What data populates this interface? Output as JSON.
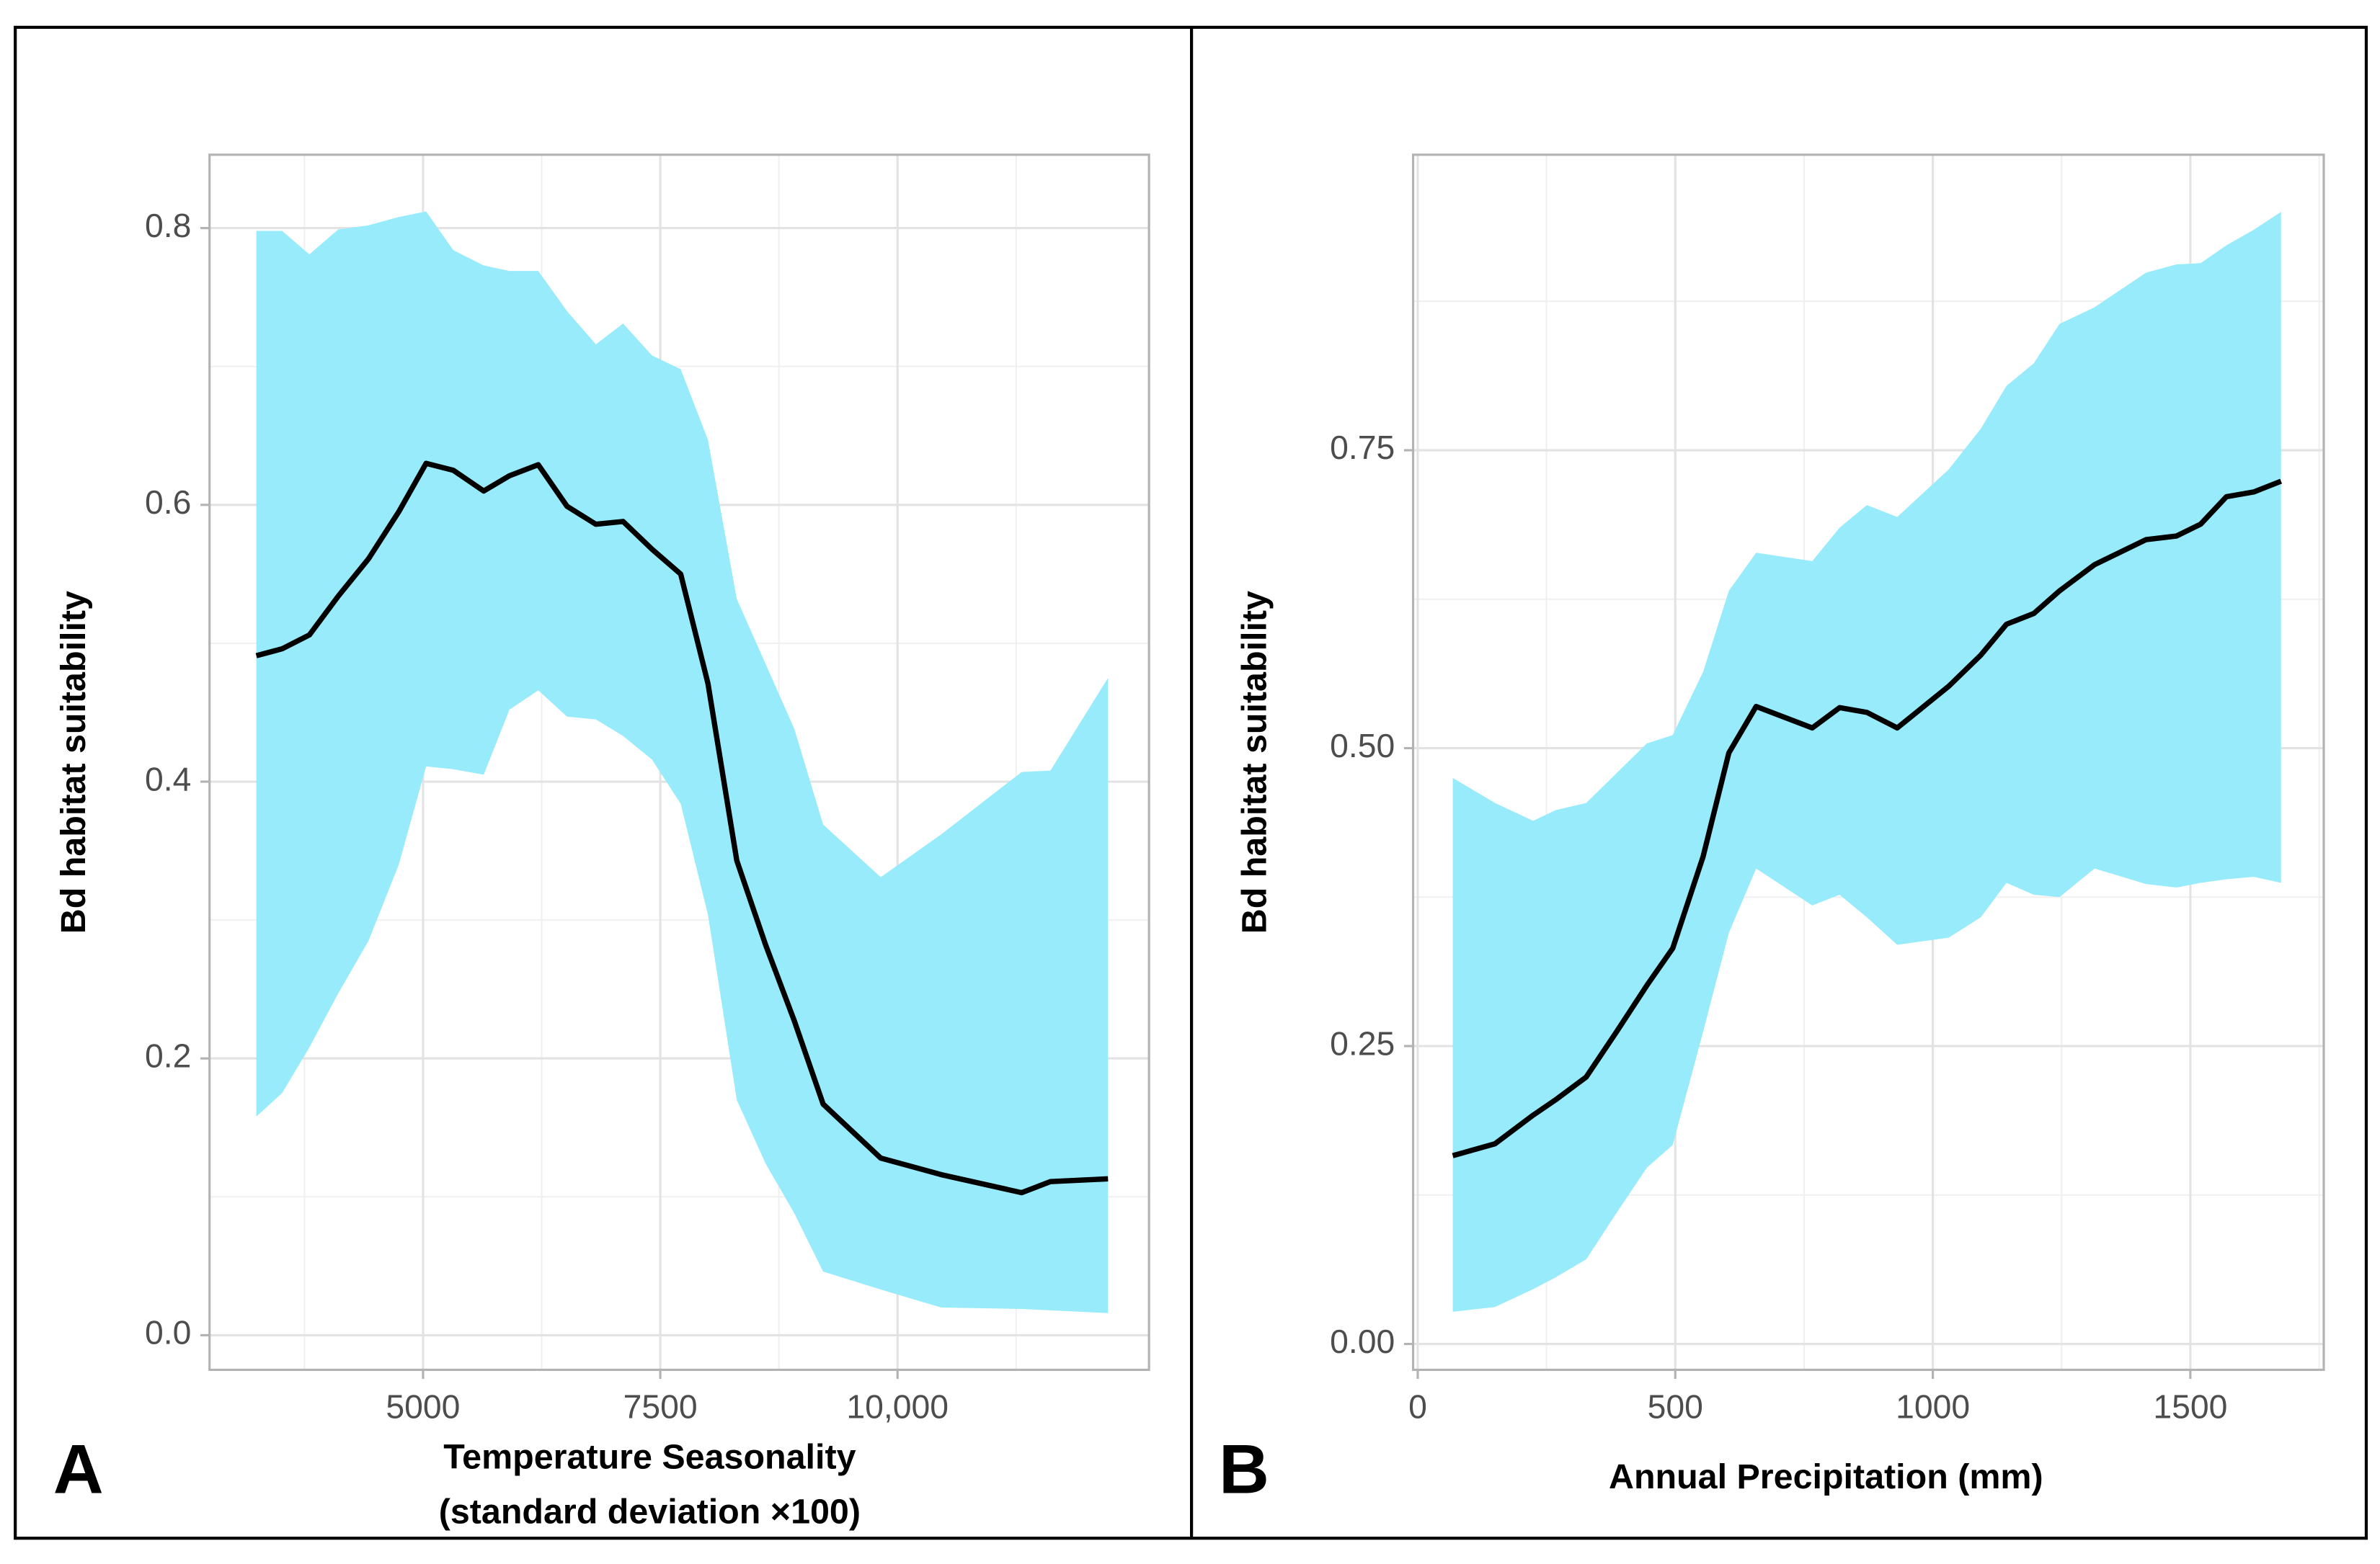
{
  "chart_data": [
    {
      "type": "line",
      "panel_label": "A",
      "xlabel": [
        "Temperature Seasonality",
        "(standard deviation ×100)"
      ],
      "ylabel": "Bd habitat suitability",
      "xlim": [
        2750,
        12650
      ],
      "ylim": [
        -0.025,
        0.853
      ],
      "xticks": [
        5000,
        7500,
        {
          "value": 10000,
          "label": "10,000"
        }
      ],
      "yticks": [
        {
          "value": 0,
          "label": "0.0"
        },
        0.2,
        0.4,
        0.6,
        0.8
      ],
      "grid": true,
      "color": "#000000",
      "band_color": "#97ebfb",
      "x": [
        3243,
        3515,
        3802,
        4106,
        4425,
        4744,
        5032,
        5319,
        5639,
        5910,
        6214,
        6517,
        6821,
        7108,
        7412,
        7715,
        8002,
        8306,
        8610,
        8913,
        9216,
        9823,
        10462,
        11308,
        11611,
        12218
      ],
      "values": [
        0.491,
        0.496,
        0.506,
        0.534,
        0.561,
        0.595,
        0.63,
        0.625,
        0.61,
        0.621,
        0.629,
        0.599,
        0.586,
        0.588,
        0.568,
        0.55,
        0.471,
        0.343,
        0.282,
        0.227,
        0.167,
        0.128,
        0.116,
        0.103,
        0.111,
        0.113
      ],
      "upper": [
        0.798,
        0.798,
        0.781,
        0.799,
        0.802,
        0.808,
        0.812,
        0.784,
        0.773,
        0.769,
        0.769,
        0.74,
        0.716,
        0.731,
        0.708,
        0.698,
        0.647,
        0.532,
        0.485,
        0.438,
        0.369,
        0.331,
        0.362,
        0.407,
        0.408,
        0.475
      ],
      "lower": [
        0.158,
        0.175,
        0.208,
        0.247,
        0.285,
        0.34,
        0.411,
        0.409,
        0.405,
        0.452,
        0.466,
        0.447,
        0.445,
        0.433,
        0.416,
        0.384,
        0.304,
        0.17,
        0.124,
        0.088,
        0.046,
        0.033,
        0.02,
        0.019,
        0.018,
        0.016
      ]
    },
    {
      "type": "line",
      "panel_label": "B",
      "xlabel": [
        "Annual Precipitation (mm)"
      ],
      "ylabel": "Bd habitat suitability",
      "xlim": [
        -9,
        1759
      ],
      "ylim": [
        -0.0217,
        0.998
      ],
      "xticks": [
        0,
        500,
        1000,
        1500
      ],
      "yticks": [
        {
          "value": 0,
          "label": "0.00"
        },
        0.25,
        {
          "value": 0.5,
          "label": "0.50"
        },
        0.75
      ],
      "grid": true,
      "color": "#000000",
      "band_color": "#97ebfb",
      "x": [
        68,
        150,
        224,
        268,
        327,
        386,
        445,
        495,
        554,
        604,
        657,
        766,
        819,
        872,
        931,
        1031,
        1093,
        1143,
        1196,
        1246,
        1314,
        1414,
        1473,
        1520,
        1570,
        1623,
        1676
      ],
      "values": [
        0.158,
        0.168,
        0.192,
        0.205,
        0.224,
        0.262,
        0.301,
        0.332,
        0.409,
        0.496,
        0.535,
        0.517,
        0.534,
        0.53,
        0.517,
        0.552,
        0.578,
        0.604,
        0.613,
        0.632,
        0.654,
        0.675,
        0.678,
        0.688,
        0.711,
        0.715,
        0.724
      ],
      "upper": [
        0.475,
        0.454,
        0.439,
        0.448,
        0.454,
        0.479,
        0.504,
        0.511,
        0.564,
        0.632,
        0.664,
        0.657,
        0.685,
        0.704,
        0.694,
        0.734,
        0.768,
        0.804,
        0.823,
        0.856,
        0.87,
        0.899,
        0.906,
        0.907,
        0.922,
        0.935,
        0.95
      ],
      "lower": [
        0.027,
        0.031,
        0.046,
        0.056,
        0.071,
        0.11,
        0.148,
        0.167,
        0.262,
        0.345,
        0.399,
        0.368,
        0.377,
        0.358,
        0.335,
        0.341,
        0.358,
        0.387,
        0.377,
        0.375,
        0.399,
        0.386,
        0.383,
        0.387,
        0.39,
        0.392,
        0.387
      ]
    }
  ]
}
